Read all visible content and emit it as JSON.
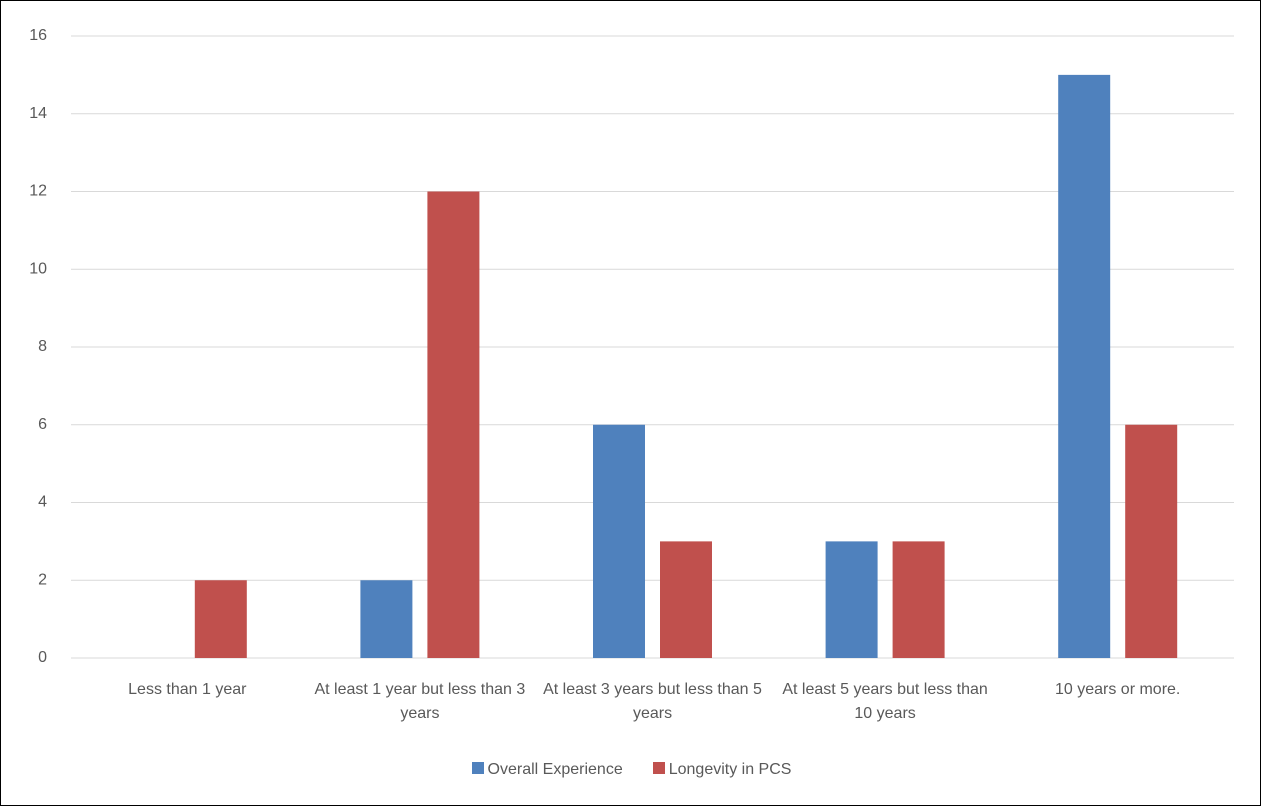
{
  "chart_data": {
    "type": "bar",
    "categories": [
      "Less than 1 year",
      "At least 1 year but less than 3 years",
      "At least  3 years but less than 5 years",
      "At least 5 years but less than 10 years",
      "10 years or more."
    ],
    "series": [
      {
        "name": "Overall Experience",
        "color": "#4f81bd",
        "values": [
          0,
          2,
          6,
          3,
          15
        ]
      },
      {
        "name": "Longevity in PCS",
        "color": "#c0504d",
        "values": [
          2,
          12,
          3,
          3,
          6
        ]
      }
    ],
    "ylim": [
      0,
      16
    ],
    "yticks": [
      0,
      2,
      4,
      6,
      8,
      10,
      12,
      14,
      16
    ],
    "grid": true,
    "legend": "bottom"
  }
}
